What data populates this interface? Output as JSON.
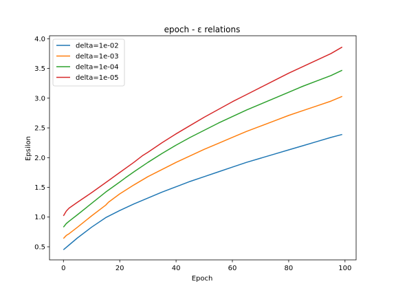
{
  "chart_data": {
    "type": "line",
    "title": "epoch - ε relations",
    "xlabel": "Epoch",
    "ylabel": "Epsilon",
    "xlim": [
      -4.95,
      103.95
    ],
    "ylim": [
      0.28,
      4.05
    ],
    "xticks": [
      0,
      20,
      40,
      60,
      80,
      100
    ],
    "yticks": [
      0.5,
      1.0,
      1.5,
      2.0,
      2.5,
      3.0,
      3.5,
      4.0
    ],
    "ytick_labels": [
      "0.5",
      "1.0",
      "1.5",
      "2.0",
      "2.5",
      "3.0",
      "3.5",
      "4.0"
    ],
    "grid": false,
    "legend_position": "top-left",
    "series": [
      {
        "name": "delta=1e-02",
        "color": "#1f77b4",
        "x": [
          0,
          2,
          5,
          10,
          15,
          20,
          25,
          30,
          35,
          40,
          45,
          50,
          55,
          60,
          65,
          70,
          75,
          80,
          85,
          90,
          95,
          99
        ],
        "y": [
          0.45,
          0.53,
          0.65,
          0.83,
          0.99,
          1.11,
          1.22,
          1.32,
          1.42,
          1.51,
          1.6,
          1.68,
          1.76,
          1.84,
          1.92,
          1.99,
          2.06,
          2.13,
          2.2,
          2.27,
          2.34,
          2.39
        ]
      },
      {
        "name": "delta=1e-03",
        "color": "#ff7f0e",
        "x": [
          0,
          1,
          2,
          5,
          10,
          15,
          16,
          20,
          25,
          30,
          35,
          40,
          45,
          50,
          55,
          60,
          65,
          70,
          75,
          80,
          85,
          90,
          95,
          99
        ],
        "y": [
          0.64,
          0.69,
          0.72,
          0.83,
          1.02,
          1.2,
          1.25,
          1.39,
          1.54,
          1.68,
          1.8,
          1.92,
          2.03,
          2.14,
          2.24,
          2.34,
          2.44,
          2.53,
          2.62,
          2.71,
          2.79,
          2.87,
          2.95,
          3.03
        ]
      },
      {
        "name": "delta=1e-04",
        "color": "#2ca02c",
        "x": [
          0,
          1,
          2,
          5,
          10,
          15,
          20,
          22,
          25,
          30,
          35,
          40,
          45,
          50,
          55,
          60,
          65,
          70,
          75,
          80,
          85,
          90,
          95,
          99
        ],
        "y": [
          0.83,
          0.89,
          0.93,
          1.04,
          1.23,
          1.42,
          1.59,
          1.66,
          1.76,
          1.92,
          2.07,
          2.21,
          2.34,
          2.46,
          2.58,
          2.69,
          2.8,
          2.9,
          3.0,
          3.1,
          3.2,
          3.29,
          3.38,
          3.47
        ]
      },
      {
        "name": "delta=1e-05",
        "color": "#d62728",
        "x": [
          0,
          1,
          2,
          5,
          10,
          15,
          20,
          25,
          28,
          30,
          35,
          40,
          45,
          50,
          55,
          60,
          65,
          70,
          75,
          80,
          85,
          90,
          95,
          99
        ],
        "y": [
          1.02,
          1.1,
          1.15,
          1.25,
          1.41,
          1.58,
          1.75,
          1.92,
          2.03,
          2.09,
          2.25,
          2.4,
          2.54,
          2.68,
          2.81,
          2.94,
          3.06,
          3.18,
          3.3,
          3.42,
          3.53,
          3.64,
          3.75,
          3.86
        ]
      }
    ]
  }
}
